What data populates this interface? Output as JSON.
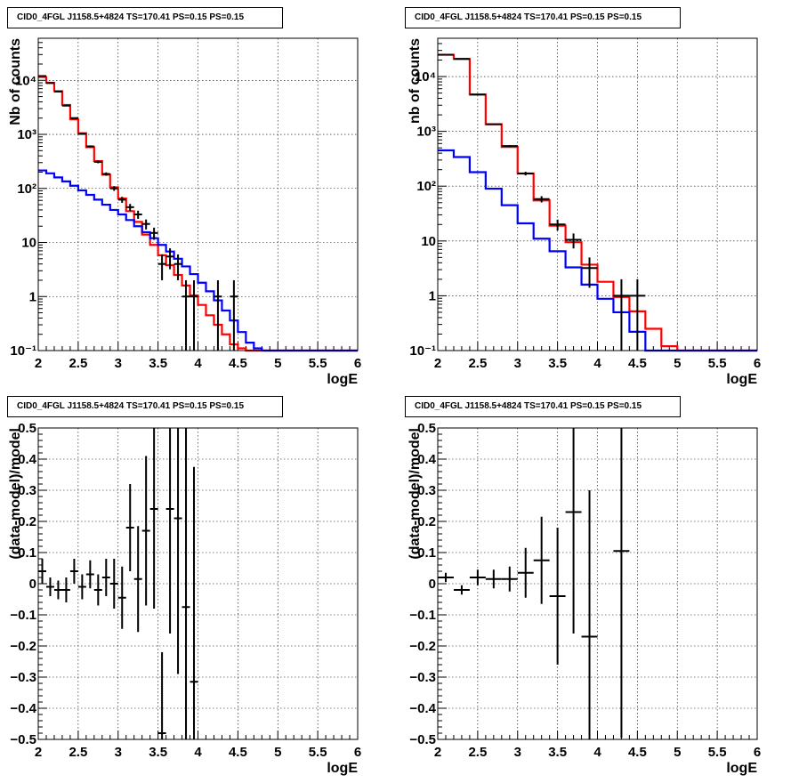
{
  "pads": [
    {
      "title": "CID0_4FGL J1158.5+4824 TS=170.41 PS=0.15 PS=0.15"
    },
    {
      "title": "CID0_4FGL J1158.5+4824 TS=170.41 PS=0.15 PS=0.15"
    },
    {
      "title": "CID0_4FGL J1158.5+4824 TS=170.41 PS=0.15 PS=0.15"
    },
    {
      "title": "CID0_4FGL J1158.5+4824 TS=170.41 PS=0.15 PS=0.15"
    }
  ],
  "colors": {
    "data": "#000000",
    "total_model": "#ff0000",
    "source_model": "#0000ff"
  },
  "chart_data": [
    {
      "type": "line",
      "yscale": "log",
      "grid": true,
      "xlabel": "logE",
      "ylabel": "Nb of counts",
      "xlim": [
        2,
        6
      ],
      "ylim": [
        0.1,
        60000
      ],
      "xticks": [
        2,
        2.5,
        3,
        3.5,
        4,
        4.5,
        5,
        5.5,
        6
      ],
      "xticklabels": [
        "2",
        "2.5",
        "3",
        "3.5",
        "4",
        "4.5",
        "5",
        "5.5",
        "6"
      ],
      "yticks": [
        0.1,
        1,
        10,
        100,
        1000,
        10000
      ],
      "yticklabels": [
        "10⁻¹",
        "1",
        "10",
        "10²",
        "10³",
        "10⁴"
      ],
      "bin_width": 0.1,
      "series": [
        {
          "kind": "step",
          "color": "#ff0000",
          "bin_edges_start": 2,
          "values": [
            11500,
            9000,
            6300,
            3500,
            1900,
            1050,
            580,
            320,
            180,
            105,
            65,
            38,
            24,
            14,
            9,
            5.8,
            3.8,
            2.5,
            1.6,
            1.05,
            0.7,
            0.45,
            0.3,
            0.2,
            0.13,
            0.11,
            0.1,
            0.1,
            0.1,
            0.1,
            0.1,
            0.1,
            0.1,
            0.1,
            0.1,
            0.1,
            0.1,
            0.1,
            0.1,
            0.1
          ]
        },
        {
          "kind": "step",
          "color": "#0000ff",
          "bin_edges_start": 2,
          "values": [
            215,
            190,
            160,
            135,
            112,
            92,
            76,
            62,
            50,
            40,
            33,
            26,
            20,
            15.5,
            12,
            9,
            6.8,
            5,
            3.6,
            2.6,
            1.8,
            1.25,
            0.85,
            0.55,
            0.36,
            0.22,
            0.14,
            0.11,
            0.1,
            0.1,
            0.1,
            0.1,
            0.1,
            0.1,
            0.1,
            0.1,
            0.1,
            0.1,
            0.1,
            0.1
          ]
        },
        {
          "kind": "points",
          "color": "#000000",
          "x": [
            2.05,
            2.15,
            2.25,
            2.35,
            2.45,
            2.55,
            2.65,
            2.75,
            2.85,
            2.95,
            3.05,
            3.15,
            3.25,
            3.35,
            3.45,
            3.55,
            3.65,
            3.75,
            3.85,
            3.95,
            4.25,
            4.45
          ],
          "y": [
            12000,
            8900,
            6200,
            3400,
            2000,
            1020,
            600,
            310,
            185,
            100,
            62,
            45,
            33,
            22,
            15,
            4,
            5.5,
            4,
            1,
            1,
            1,
            1
          ],
          "yerr_lo": [
            110,
            95,
            80,
            58,
            45,
            32,
            25,
            18,
            13,
            10,
            7.8,
            6.7,
            5.7,
            4.6,
            3.8,
            2,
            2.3,
            2,
            0.9,
            0.9,
            0.9,
            0.9
          ],
          "yerr_hi": [
            110,
            95,
            80,
            58,
            45,
            32,
            25,
            18,
            13,
            10,
            7.8,
            6.7,
            5.7,
            4.6,
            3.8,
            2,
            2.3,
            2,
            1,
            1,
            1,
            1
          ]
        }
      ]
    },
    {
      "type": "line",
      "yscale": "log",
      "grid": true,
      "xlabel": "logE",
      "ylabel": "nb of counts",
      "xlim": [
        2,
        6
      ],
      "ylim": [
        0.1,
        50000
      ],
      "xticks": [
        2,
        2.5,
        3,
        3.5,
        4,
        4.5,
        5,
        5.5,
        6
      ],
      "xticklabels": [
        "2",
        "2.5",
        "3",
        "3.5",
        "4",
        "4.5",
        "5",
        "5.5",
        "6"
      ],
      "yticks": [
        0.1,
        1,
        10,
        100,
        1000,
        10000
      ],
      "yticklabels": [
        "10⁻¹",
        "1",
        "10",
        "10²",
        "10³",
        "10⁴"
      ],
      "bin_width": 0.2,
      "series": [
        {
          "kind": "step",
          "color": "#ff0000",
          "bin_edges_start": 2,
          "values": [
            25000,
            21000,
            4700,
            1350,
            520,
            170,
            55,
            19,
            9.5,
            3.7,
            1.8,
            0.95,
            0.52,
            0.25,
            0.12,
            0.1,
            0.1,
            0.1,
            0.1,
            0.1
          ]
        },
        {
          "kind": "step",
          "color": "#0000ff",
          "bin_edges_start": 2,
          "values": [
            450,
            340,
            180,
            90,
            45,
            21,
            11,
            6.5,
            3.3,
            1.6,
            0.88,
            0.5,
            0.22,
            0.1,
            0.1,
            0.1,
            0.1,
            0.1,
            0.1,
            0.1
          ]
        },
        {
          "kind": "points",
          "color": "#000000",
          "x": [
            2.1,
            2.3,
            2.5,
            2.7,
            2.9,
            3.1,
            3.3,
            3.5,
            3.7,
            3.9,
            4.3,
            4.5
          ],
          "y": [
            25000,
            21000,
            4700,
            1350,
            540,
            170,
            58,
            20,
            10.5,
            3.2,
            1,
            1
          ],
          "yerr_lo": [
            160,
            145,
            70,
            37,
            23,
            13,
            7.6,
            4.5,
            3.2,
            1.8,
            0.9,
            0.9
          ],
          "yerr_hi": [
            160,
            145,
            70,
            37,
            23,
            13,
            7.6,
            4.5,
            3.2,
            1.8,
            1,
            1
          ]
        }
      ]
    },
    {
      "type": "scatter",
      "yscale": "linear",
      "grid": true,
      "xlabel": "logE",
      "ylabel": "(data-model)/model",
      "xlim": [
        2,
        6
      ],
      "ylim": [
        -0.5,
        0.5
      ],
      "xticks": [
        2,
        2.5,
        3,
        3.5,
        4,
        4.5,
        5,
        5.5,
        6
      ],
      "xticklabels": [
        "2",
        "2.5",
        "3",
        "3.5",
        "4",
        "4.5",
        "5",
        "5.5",
        "6"
      ],
      "yticks": [
        -0.5,
        -0.4,
        -0.3,
        -0.2,
        -0.1,
        0,
        0.1,
        0.2,
        0.3,
        0.4,
        0.5
      ],
      "yticklabels": [
        "−0.5",
        "−0.4",
        "−0.3",
        "−0.2",
        "−0.1",
        "0",
        "0.1",
        "0.2",
        "0.3",
        "0.4",
        "0.5"
      ],
      "xerr": 0.05,
      "series": [
        {
          "kind": "points",
          "color": "#000000",
          "x": [
            2.05,
            2.15,
            2.25,
            2.35,
            2.45,
            2.55,
            2.65,
            2.75,
            2.85,
            2.95,
            3.05,
            3.15,
            3.25,
            3.35,
            3.45,
            3.55,
            3.65,
            3.75,
            3.85,
            3.95
          ],
          "y": [
            0.04,
            -0.01,
            -0.02,
            -0.02,
            0.04,
            -0.01,
            0.03,
            -0.02,
            0.02,
            0,
            -0.045,
            0.18,
            0.015,
            0.17,
            0.24,
            -0.48,
            0.24,
            0.21,
            -0.075,
            -0.315
          ],
          "yerr": [
            0.04,
            0.03,
            0.03,
            0.04,
            0.04,
            0.04,
            0.045,
            0.05,
            0.06,
            0.08,
            0.1,
            0.14,
            0.17,
            0.24,
            0.32,
            0.26,
            0.4,
            0.5,
            0.7,
            0.69
          ]
        }
      ]
    },
    {
      "type": "scatter",
      "yscale": "linear",
      "grid": true,
      "xlabel": "logE",
      "ylabel": "(data-model)/model",
      "xlim": [
        2,
        6
      ],
      "ylim": [
        -0.5,
        0.5
      ],
      "xticks": [
        2,
        2.5,
        3,
        3.5,
        4,
        4.5,
        5,
        5.5,
        6
      ],
      "xticklabels": [
        "2",
        "2.5",
        "3",
        "3.5",
        "4",
        "4.5",
        "5",
        "5.5",
        "6"
      ],
      "yticks": [
        -0.5,
        -0.4,
        -0.3,
        -0.2,
        -0.1,
        0,
        0.1,
        0.2,
        0.3,
        0.4,
        0.5
      ],
      "yticklabels": [
        "−0.5",
        "−0.4",
        "−0.3",
        "−0.2",
        "−0.1",
        "0",
        "0.1",
        "0.2",
        "0.3",
        "0.4",
        "0.5"
      ],
      "xerr": 0.1,
      "series": [
        {
          "kind": "points",
          "color": "#000000",
          "x": [
            2.1,
            2.3,
            2.5,
            2.7,
            2.9,
            3.1,
            3.3,
            3.5,
            3.7,
            3.9,
            4.3
          ],
          "y": [
            0.02,
            -0.02,
            0.02,
            0.015,
            0.015,
            0.035,
            0.075,
            -0.04,
            0.23,
            -0.17,
            0.105
          ],
          "yerr": [
            0.015,
            0.015,
            0.025,
            0.03,
            0.04,
            0.08,
            0.14,
            0.22,
            0.39,
            0.47,
            0.6
          ]
        }
      ]
    }
  ]
}
